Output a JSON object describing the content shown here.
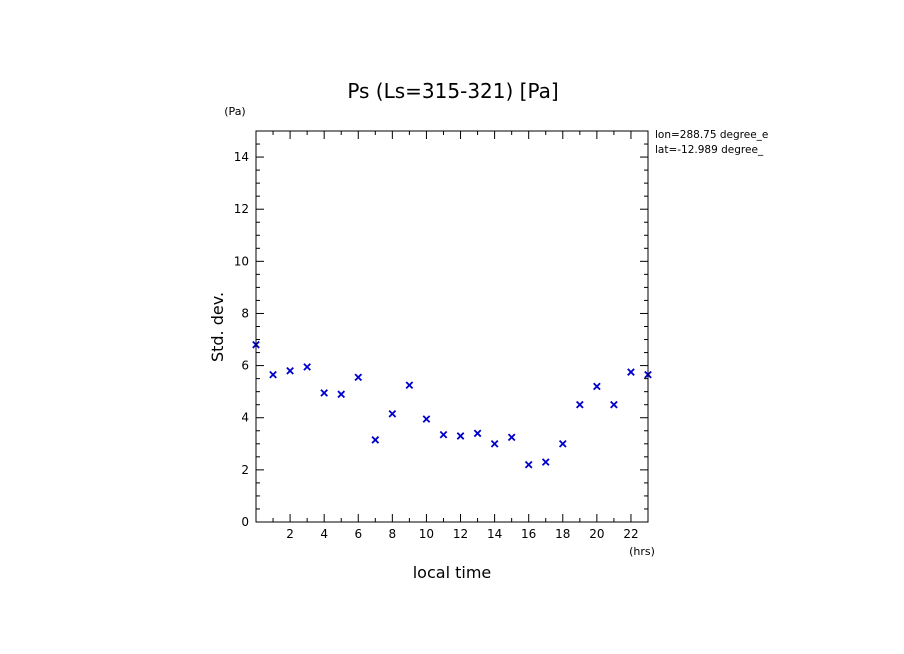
{
  "chart_data": {
    "type": "scatter",
    "title": "Ps (Ls=315-321) [Pa]",
    "xlabel": "local time",
    "ylabel": "Std. dev.",
    "x_unit": "(hrs)",
    "y_unit": "(Pa)",
    "xlim": [
      0,
      23
    ],
    "ylim": [
      0,
      15
    ],
    "x_ticks": [
      "2",
      "4",
      "6",
      "8",
      "10",
      "12",
      "14",
      "16",
      "18",
      "20",
      "22"
    ],
    "y_ticks": [
      "0",
      "2",
      "4",
      "6",
      "8",
      "10",
      "12",
      "14"
    ],
    "annotations": [
      "lon=288.75 degree_e",
      "lat=-12.989 degree_"
    ],
    "marker": "x",
    "color": "#0000cc",
    "x": [
      0,
      1,
      2,
      3,
      4,
      5,
      6,
      7,
      8,
      9,
      10,
      11,
      12,
      13,
      14,
      15,
      16,
      17,
      18,
      19,
      20,
      21,
      22,
      23
    ],
    "y": [
      6.8,
      5.65,
      5.8,
      5.95,
      4.95,
      4.9,
      5.55,
      3.15,
      4.15,
      5.25,
      3.95,
      3.35,
      3.3,
      3.4,
      3.0,
      3.25,
      2.2,
      2.3,
      3.0,
      4.5,
      5.2,
      4.5,
      5.75,
      5.65
    ]
  }
}
